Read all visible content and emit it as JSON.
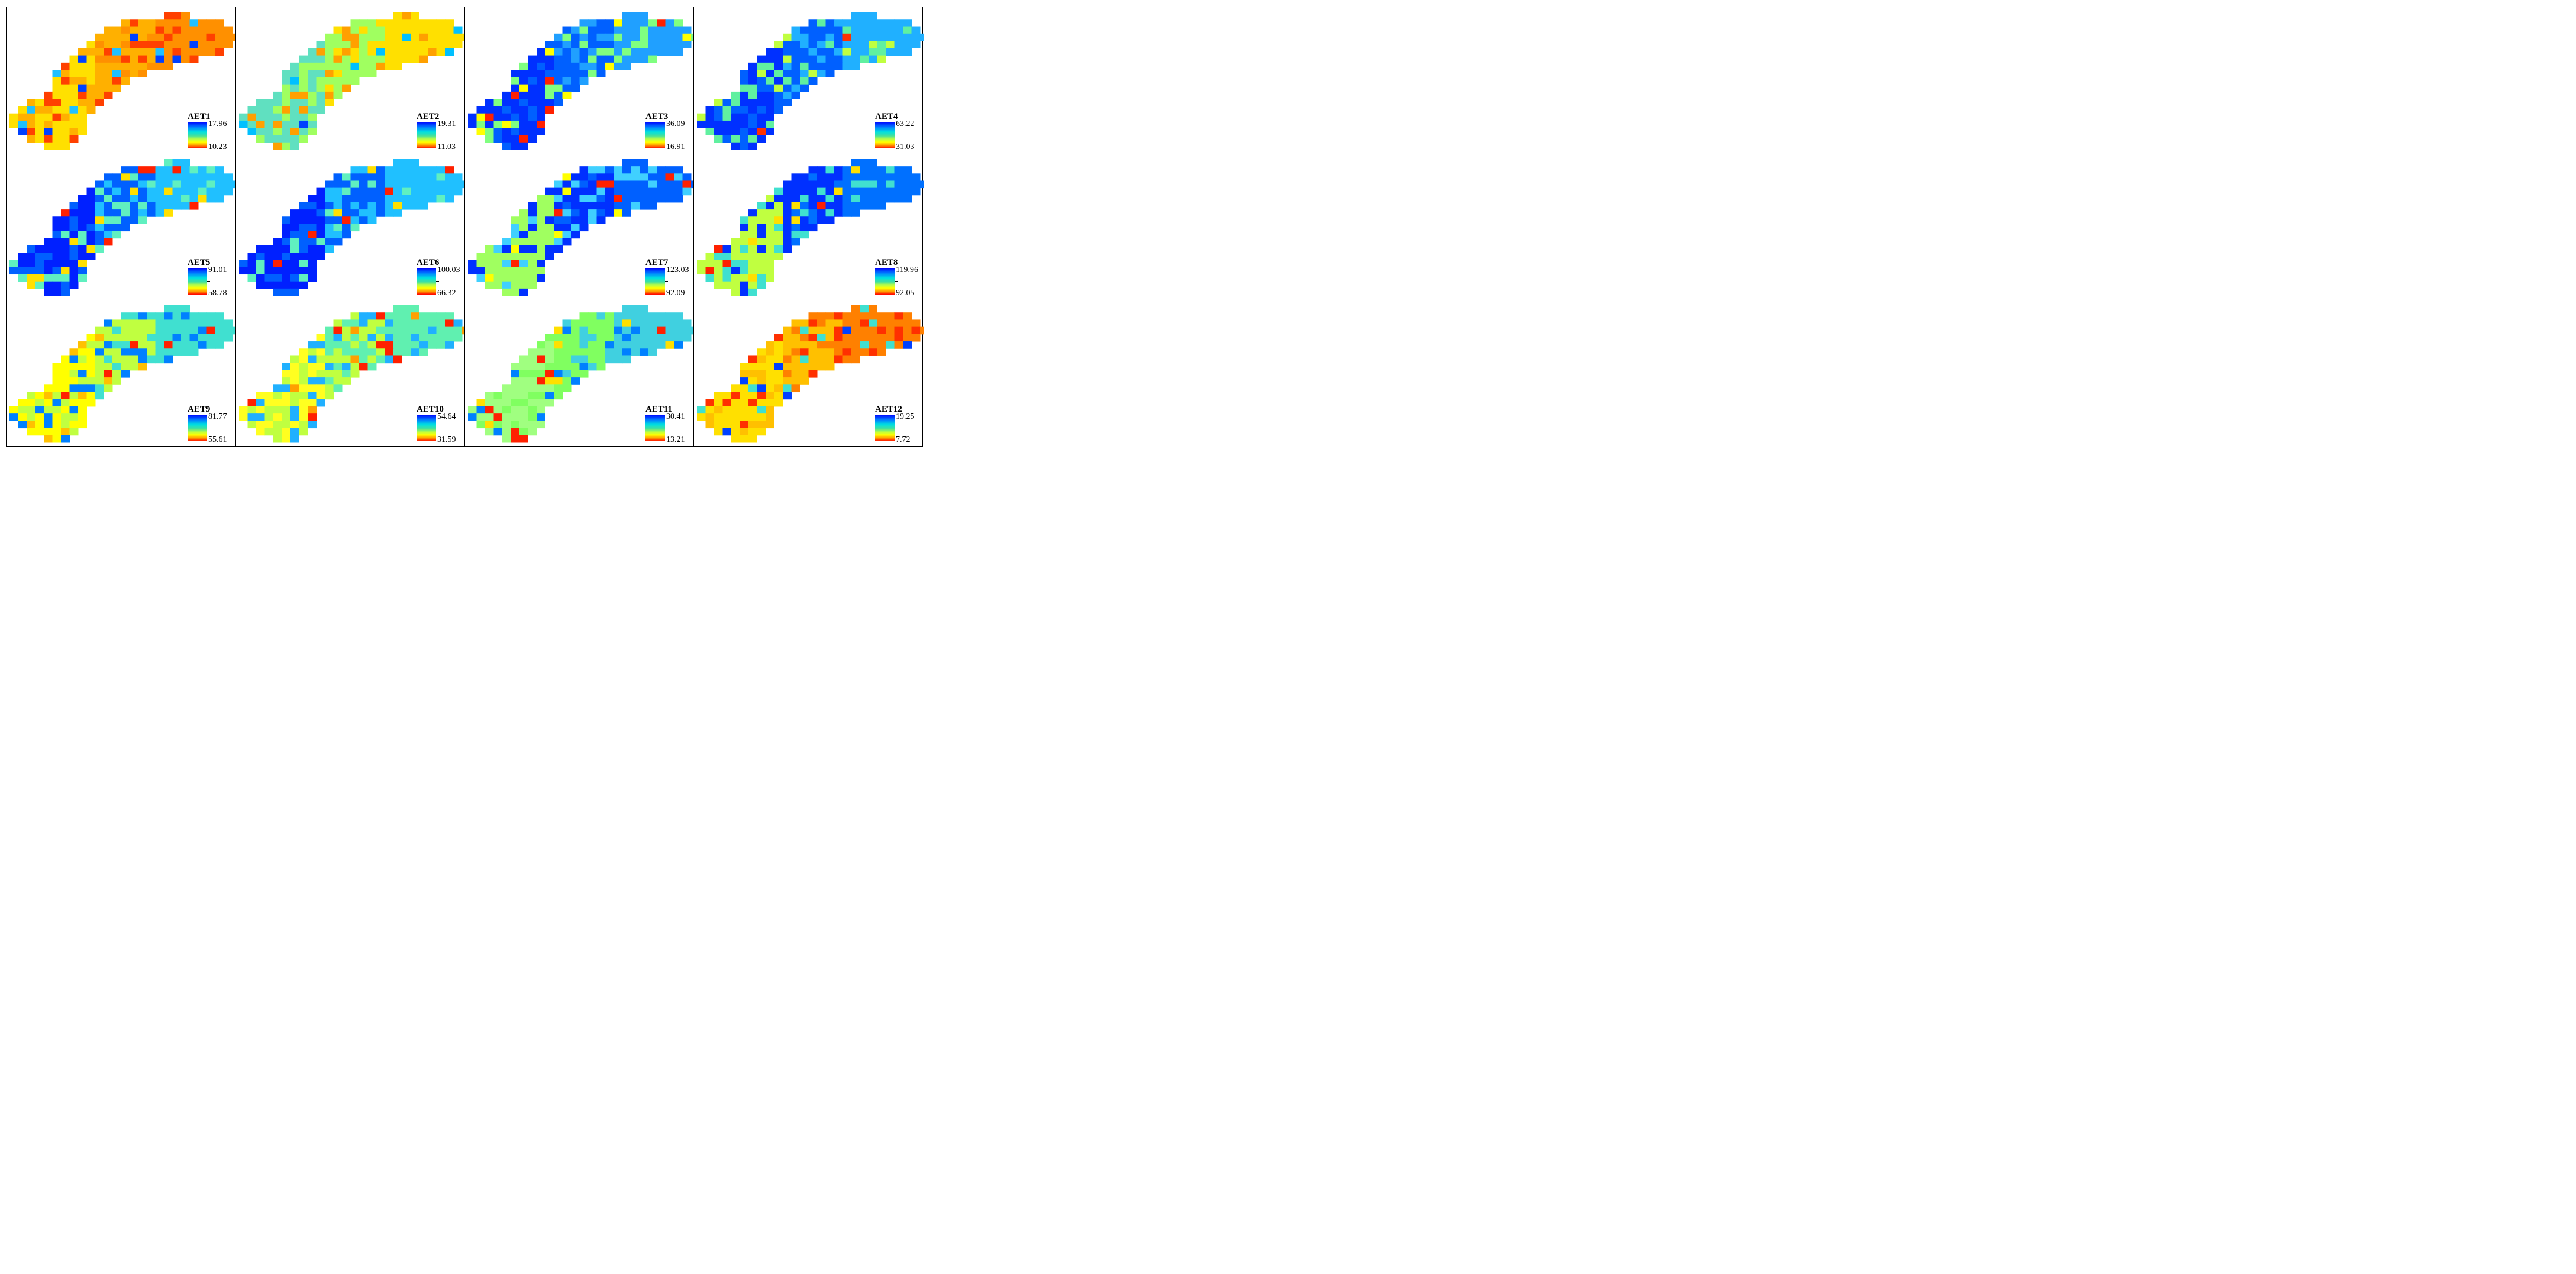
{
  "panels": [
    {
      "title": "AET1",
      "max": "17.96",
      "min": "10.23",
      "colors": [
        "#ffe000",
        "#ffb000",
        "#ff9000",
        "#ff4000",
        "#20c0ff",
        "#0040ff"
      ]
    },
    {
      "title": "AET2",
      "max": "19.31",
      "min": "11.03",
      "colors": [
        "#60e0c0",
        "#a0ff60",
        "#ffe000",
        "#ffa000",
        "#00c0ff",
        "#0040ff"
      ]
    },
    {
      "title": "AET3",
      "max": "36.09",
      "min": "16.91",
      "colors": [
        "#0030ff",
        "#0060ff",
        "#20a0ff",
        "#80ff80",
        "#ffff00",
        "#ff2000"
      ]
    },
    {
      "title": "AET4",
      "max": "63.22",
      "min": "31.03",
      "colors": [
        "#0030ff",
        "#0060ff",
        "#20b0ff",
        "#60f0a0",
        "#c0ff40",
        "#ff3000"
      ]
    },
    {
      "title": "AET5",
      "max": "91.01",
      "min": "58.78",
      "colors": [
        "#0020ff",
        "#0060ff",
        "#20c0ff",
        "#60f0c0",
        "#ffe000",
        "#ff2000"
      ]
    },
    {
      "title": "AET6",
      "max": "100.03",
      "min": "66.32",
      "colors": [
        "#0020ff",
        "#0060ff",
        "#20c0ff",
        "#60f0c0",
        "#ffe000",
        "#ff2000"
      ]
    },
    {
      "title": "AET7",
      "max": "123.03",
      "min": "92.09",
      "colors": [
        "#a0ff60",
        "#0030ff",
        "#0060ff",
        "#40d0ff",
        "#ffff00",
        "#ff2000"
      ]
    },
    {
      "title": "AET8",
      "max": "119.96",
      "min": "92.05",
      "colors": [
        "#c0ff40",
        "#0030ff",
        "#0070ff",
        "#40e0d0",
        "#ffe000",
        "#ff2000"
      ]
    },
    {
      "title": "AET9",
      "max": "81.77",
      "min": "55.61",
      "colors": [
        "#ffff00",
        "#c0ff40",
        "#40e0d0",
        "#0080ff",
        "#ffc000",
        "#ff2000"
      ]
    },
    {
      "title": "AET10",
      "max": "54.64",
      "min": "31.59",
      "colors": [
        "#ffff20",
        "#c0ff40",
        "#60f0b0",
        "#20b0ff",
        "#ffa000",
        "#ff2000"
      ]
    },
    {
      "title": "AET11",
      "max": "30.41",
      "min": "13.21",
      "colors": [
        "#a0ff80",
        "#80ff60",
        "#40d0e0",
        "#0080ff",
        "#ffe000",
        "#ff2000"
      ]
    },
    {
      "title": "AET12",
      "max": "19.25",
      "min": "7.72",
      "colors": [
        "#ffe000",
        "#ffc000",
        "#ff8000",
        "#ff3000",
        "#40e0d0",
        "#0040ff"
      ]
    }
  ]
}
